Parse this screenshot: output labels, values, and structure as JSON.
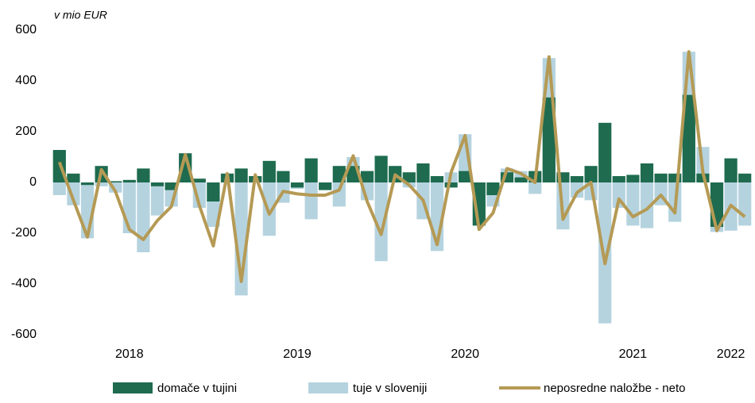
{
  "chart_data": {
    "type": "bar_line",
    "unit_label": "v mio EUR",
    "categories": [
      null,
      null,
      null,
      null,
      null,
      "2018",
      null,
      null,
      null,
      null,
      null,
      null,
      null,
      null,
      null,
      null,
      null,
      "2019",
      null,
      null,
      null,
      null,
      null,
      null,
      null,
      null,
      null,
      null,
      null,
      "2020",
      null,
      null,
      null,
      null,
      null,
      null,
      null,
      null,
      null,
      null,
      null,
      "2021",
      null,
      null,
      null,
      null,
      null,
      null,
      "2022",
      null
    ],
    "series": [
      {
        "name": "tuje v sloveniji",
        "kind": "bar",
        "color": "#b5d3df",
        "values": [
          -50,
          -90,
          -220,
          -15,
          -40,
          -200,
          -275,
          -130,
          -95,
          105,
          -100,
          -175,
          35,
          -445,
          20,
          -210,
          -80,
          -25,
          -145,
          -20,
          -95,
          100,
          -70,
          -310,
          40,
          -20,
          -145,
          -270,
          40,
          190,
          -10,
          -95,
          55,
          45,
          -45,
          490,
          -185,
          -60,
          -70,
          -555,
          -100,
          -170,
          -180,
          -90,
          -155,
          515,
          140,
          -195,
          -190,
          -170
        ]
      },
      {
        "name": "domače v tujini",
        "kind": "bar",
        "color": "#1e6b4f",
        "values": [
          128,
          35,
          -10,
          65,
          5,
          10,
          55,
          -15,
          -30,
          115,
          15,
          -75,
          35,
          55,
          25,
          85,
          45,
          -20,
          95,
          -30,
          65,
          65,
          45,
          105,
          65,
          40,
          75,
          25,
          -20,
          45,
          -170,
          -50,
          40,
          20,
          45,
          335,
          40,
          25,
          65,
          235,
          25,
          30,
          75,
          35,
          35,
          345,
          35,
          -175,
          95,
          35
        ]
      },
      {
        "name": "neposredne naložbe - neto",
        "kind": "line",
        "color": "#b59a55",
        "values": [
          80,
          -70,
          -215,
          50,
          -35,
          -185,
          -225,
          -150,
          -95,
          110,
          -90,
          -250,
          35,
          -390,
          30,
          -125,
          -35,
          -45,
          -50,
          -50,
          -30,
          105,
          -75,
          -205,
          30,
          -10,
          -70,
          -245,
          40,
          185,
          -185,
          -120,
          55,
          35,
          0,
          495,
          -145,
          -40,
          0,
          -320,
          -65,
          -135,
          -105,
          -50,
          -120,
          515,
          40,
          -190,
          -90,
          -135
        ]
      }
    ],
    "legend_order": [
      1,
      0,
      2
    ],
    "ylim": [
      -600,
      600
    ],
    "yticks": [
      -600,
      -400,
      -200,
      0,
      200,
      400,
      600
    ]
  }
}
